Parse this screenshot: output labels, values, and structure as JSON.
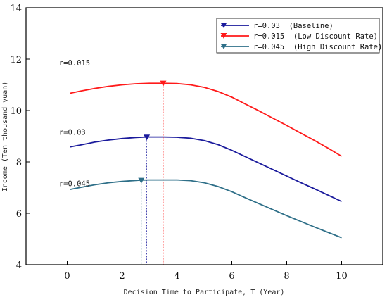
{
  "chart_data": {
    "type": "line",
    "title": "",
    "xlabel": "Decision Time to Participate, T (Year)",
    "ylabel": "Income (Ten thousand yuan)",
    "xlim": [
      -1.5,
      11.5
    ],
    "ylim": [
      4,
      14
    ],
    "xticks": [
      0,
      2,
      4,
      6,
      8,
      10
    ],
    "yticks": [
      4,
      6,
      8,
      10,
      12,
      14
    ],
    "grid": false,
    "legend_position": "top-right",
    "series": [
      {
        "name": "r=0.03  (Baseline)",
        "color": "#1a1a9c",
        "x": [
          0.1,
          0.5,
          1.0,
          1.5,
          2.0,
          2.5,
          2.9,
          3.2,
          3.5,
          4.0,
          4.5,
          5.0,
          5.5,
          6.0,
          6.5,
          7.0,
          7.5,
          8.0,
          8.5,
          9.0,
          9.5,
          10.0
        ],
        "y": [
          8.58,
          8.66,
          8.77,
          8.85,
          8.91,
          8.95,
          8.97,
          8.97,
          8.97,
          8.96,
          8.92,
          8.83,
          8.67,
          8.45,
          8.2,
          7.95,
          7.7,
          7.45,
          7.2,
          6.96,
          6.71,
          6.46
        ],
        "marker": {
          "x": 2.9,
          "y": 8.95
        }
      },
      {
        "name": "r=0.015  (Low Discount Rate)",
        "color": "#ff1a1a",
        "x": [
          0.1,
          0.5,
          1.0,
          1.5,
          2.0,
          2.5,
          3.0,
          3.5,
          4.0,
          4.5,
          5.0,
          5.5,
          6.0,
          6.5,
          7.0,
          7.5,
          8.0,
          8.5,
          9.0,
          9.5,
          10.0
        ],
        "y": [
          10.67,
          10.76,
          10.86,
          10.94,
          11.0,
          11.04,
          11.06,
          11.06,
          11.05,
          11.0,
          10.9,
          10.74,
          10.52,
          10.25,
          9.98,
          9.7,
          9.42,
          9.13,
          8.84,
          8.54,
          8.22
        ],
        "marker": {
          "x": 3.5,
          "y": 11.05
        }
      },
      {
        "name": "r=0.045  (High Discount Rate)",
        "color": "#2e6f88",
        "x": [
          0.1,
          0.5,
          1.0,
          1.5,
          2.0,
          2.5,
          2.7,
          3.0,
          3.5,
          4.0,
          4.5,
          5.0,
          5.5,
          6.0,
          6.5,
          7.0,
          7.5,
          8.0,
          8.5,
          9.0,
          9.5,
          10.0
        ],
        "y": [
          6.93,
          7.01,
          7.11,
          7.19,
          7.24,
          7.28,
          7.29,
          7.3,
          7.3,
          7.3,
          7.27,
          7.19,
          7.04,
          6.84,
          6.6,
          6.37,
          6.14,
          5.91,
          5.69,
          5.47,
          5.26,
          5.05
        ],
        "marker": {
          "x": 2.7,
          "y": 7.27
        }
      }
    ],
    "annotations": [
      {
        "text": "r=0.015",
        "x": -0.3,
        "y": 11.75
      },
      {
        "text": "r=0.03",
        "x": -0.3,
        "y": 9.05
      },
      {
        "text": "r=0.045",
        "x": -0.3,
        "y": 7.05
      }
    ]
  }
}
